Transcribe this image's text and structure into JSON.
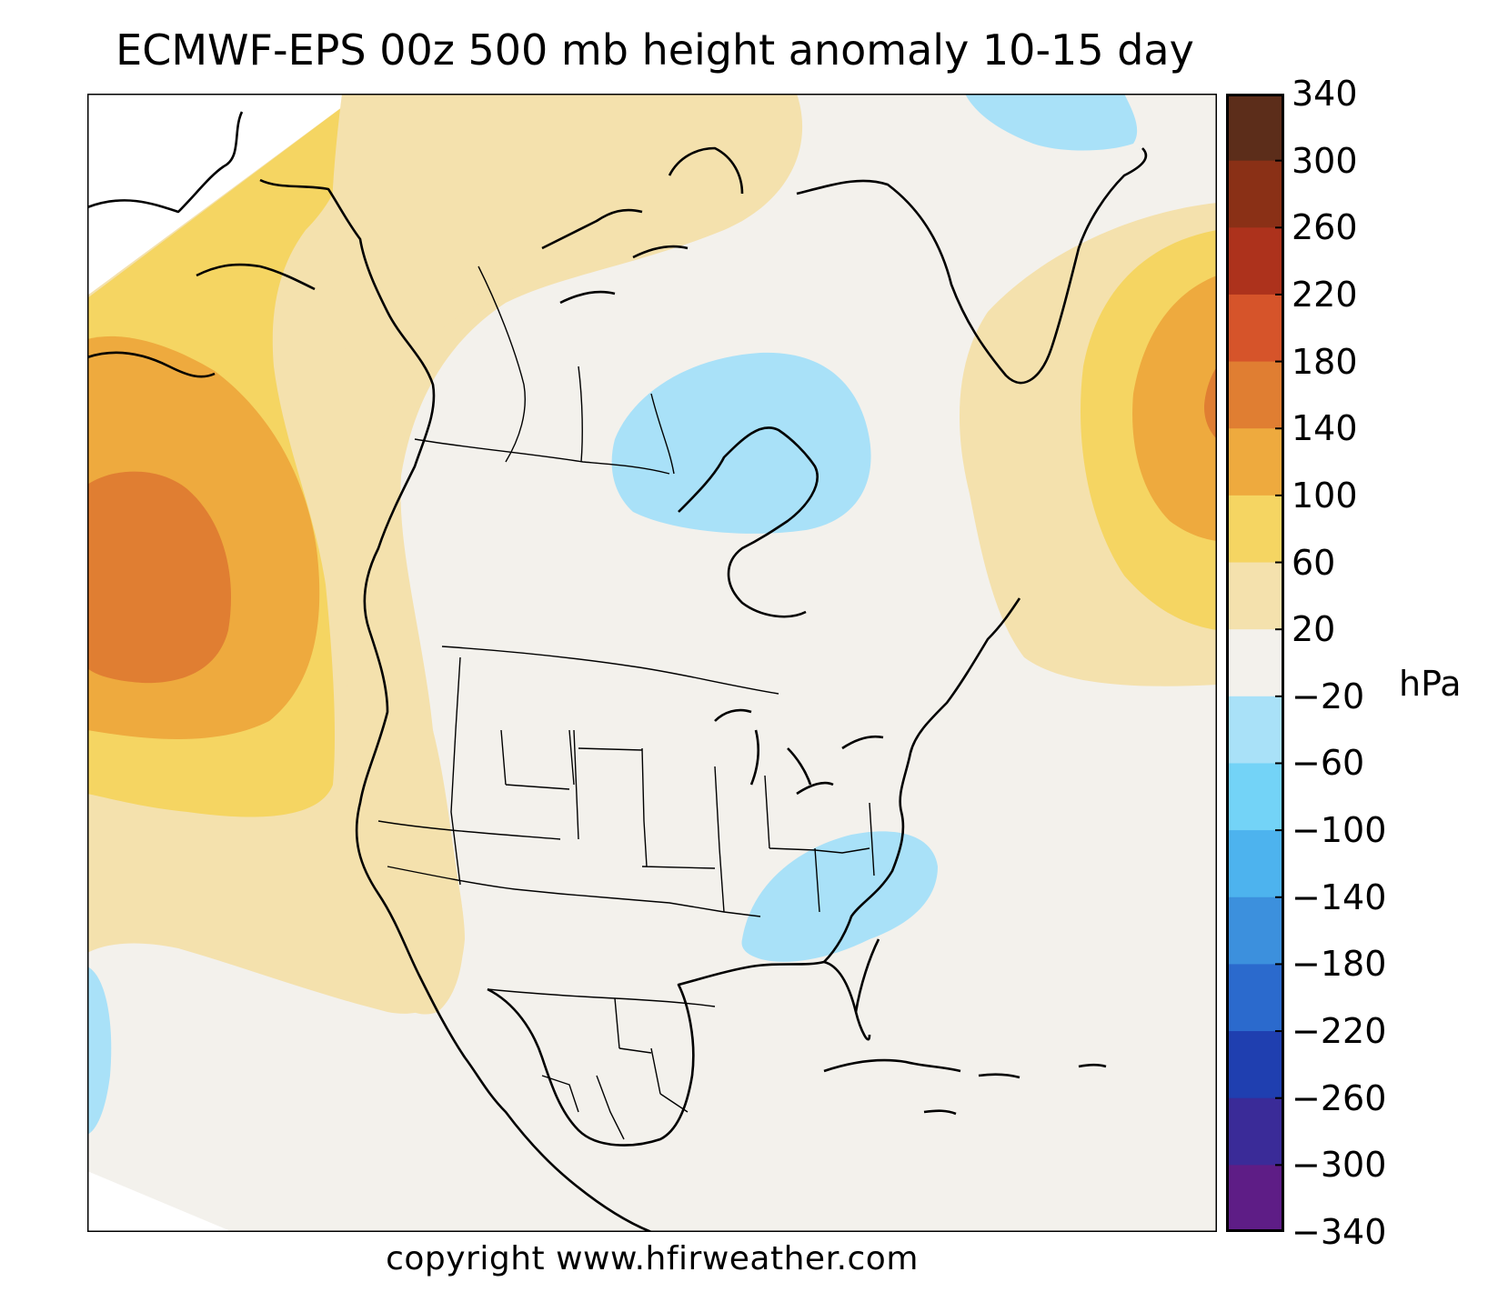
{
  "title": "ECMWF-EPS 00z 500 mb height anomaly 10-15 day",
  "copyright": "copyright www.hfirweather.com",
  "colorbar": {
    "unit": "hPa",
    "ticks": [
      "340",
      "300",
      "260",
      "220",
      "180",
      "140",
      "100",
      "60",
      "20",
      "−20",
      "−60",
      "−100",
      "−140",
      "−180",
      "−220",
      "−260",
      "−300",
      "−340"
    ],
    "bins": [
      {
        "range": "300 to 340",
        "color": "#5c2d1a"
      },
      {
        "range": "260 to 300",
        "color": "#8a3016"
      },
      {
        "range": "220 to 260",
        "color": "#ad321c"
      },
      {
        "range": "180 to 220",
        "color": "#d6542a"
      },
      {
        "range": "140 to 180",
        "color": "#e07e32"
      },
      {
        "range": "100 to 140",
        "color": "#eeaa3e"
      },
      {
        "range": "60 to 100",
        "color": "#f5d562"
      },
      {
        "range": "20 to 60",
        "color": "#f4e1ad"
      },
      {
        "range": "-20 to 20",
        "color": "#f3f1ec"
      },
      {
        "range": "-60 to -20",
        "color": "#a9e1f8"
      },
      {
        "range": "-100 to -60",
        "color": "#73d3f7"
      },
      {
        "range": "-140 to -100",
        "color": "#4db3ee"
      },
      {
        "range": "-180 to -140",
        "color": "#3c90dd"
      },
      {
        "range": "-220 to -180",
        "color": "#2b6acd"
      },
      {
        "range": "-260 to -220",
        "color": "#1f3fb0"
      },
      {
        "range": "-300 to -260",
        "color": "#3a2b98"
      },
      {
        "range": "-340 to -300",
        "color": "#5e1d86"
      }
    ]
  },
  "map": {
    "region": "North America",
    "projection": "polar stereographic",
    "features": [
      "coastlines",
      "state and province borders"
    ],
    "anomaly_colors": {
      "neutral": "#f3f1ec",
      "pos20": "#f4e1ad",
      "pos60": "#f5d562",
      "pos100": "#eeaa3e",
      "pos140": "#e07e32",
      "neg20": "#a9e1f8"
    }
  }
}
